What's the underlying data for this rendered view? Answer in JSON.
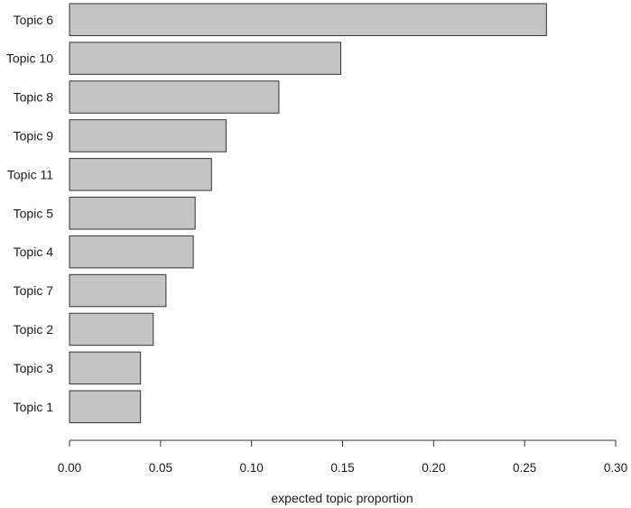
{
  "chart_data": {
    "type": "bar",
    "orientation": "horizontal",
    "categories": [
      "Topic 6",
      "Topic 10",
      "Topic 8",
      "Topic 9",
      "Topic 11",
      "Topic 5",
      "Topic 4",
      "Topic 7",
      "Topic 2",
      "Topic 3",
      "Topic 1"
    ],
    "values": [
      0.262,
      0.149,
      0.115,
      0.086,
      0.078,
      0.069,
      0.068,
      0.053,
      0.046,
      0.039,
      0.039
    ],
    "title": "",
    "xlabel": "expected topic proportion",
    "ylabel": "",
    "xlim": [
      0.0,
      0.3
    ],
    "xticks": [
      "0.00",
      "0.05",
      "0.10",
      "0.15",
      "0.20",
      "0.25",
      "0.30"
    ],
    "grid": false,
    "legend": "none",
    "colors": {
      "bar_fill": "#c4c4c4",
      "bar_stroke": "#333333"
    }
  }
}
